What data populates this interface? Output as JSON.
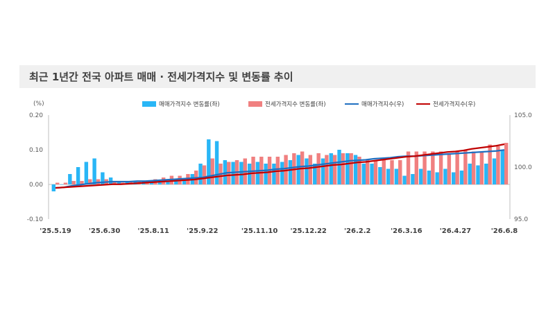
{
  "title": "최근 1년간 전국 아파트 매매 · 전세가격지수 및 변동률 추이",
  "chart_data": {
    "type": "bar",
    "y_unit": "(%)",
    "ylim_left": [
      -0.1,
      0.2
    ],
    "left_ticks": [
      "0.20",
      "0.10",
      "0.00",
      "-0.10"
    ],
    "ylim_right": [
      95.0,
      105.0
    ],
    "right_ticks": [
      "105.0",
      "100.0",
      "95.0"
    ],
    "x_ticks": [
      "'25.5.19",
      "'25.6.30",
      "'25.8.11",
      "'25.9.22",
      "'25.11.10",
      "'25.12.22",
      "'26.2.2",
      "'26.3.16",
      "'26.4.27",
      "'26.6.8"
    ],
    "x_tick_index": [
      0,
      6,
      12,
      18,
      25,
      31,
      37,
      43,
      49,
      55
    ],
    "legend_position": "top",
    "series": [
      {
        "name": "매매가격지수 변동률(좌)",
        "type": "bar",
        "axis": "left",
        "color": "#29b6f6",
        "values": [
          -0.02,
          0.0,
          0.03,
          0.05,
          0.065,
          0.075,
          0.035,
          0.02,
          0.01,
          0.01,
          0.01,
          0.01,
          0.01,
          0.01,
          0.01,
          0.015,
          0.015,
          0.03,
          0.06,
          0.13,
          0.125,
          0.07,
          0.065,
          0.065,
          0.06,
          0.065,
          0.06,
          0.06,
          0.065,
          0.07,
          0.085,
          0.075,
          0.06,
          0.075,
          0.09,
          0.1,
          0.09,
          0.085,
          0.06,
          0.06,
          0.05,
          0.045,
          0.045,
          0.025,
          0.03,
          0.045,
          0.04,
          0.035,
          0.045,
          0.035,
          0.04,
          0.06,
          0.055,
          0.06,
          0.075,
          0.1
        ]
      },
      {
        "name": "전세가격지수 변동률(좌)",
        "type": "bar",
        "axis": "left",
        "color": "#f08080",
        "values": [
          0.005,
          0.005,
          0.01,
          0.01,
          0.015,
          0.015,
          0.015,
          0.01,
          0.005,
          0.01,
          0.01,
          0.01,
          0.015,
          0.02,
          0.025,
          0.025,
          0.03,
          0.04,
          0.055,
          0.075,
          0.06,
          0.065,
          0.07,
          0.075,
          0.08,
          0.08,
          0.08,
          0.08,
          0.085,
          0.09,
          0.095,
          0.085,
          0.09,
          0.085,
          0.085,
          0.09,
          0.09,
          0.08,
          0.07,
          0.07,
          0.07,
          0.07,
          0.07,
          0.095,
          0.095,
          0.095,
          0.095,
          0.095,
          0.09,
          0.095,
          0.1,
          0.095,
          0.095,
          0.115,
          0.11,
          0.12
        ]
      },
      {
        "name": "매매가격지수(우)",
        "type": "line",
        "axis": "right",
        "color": "#1f6fc0",
        "values": [
          98.0,
          98.05,
          98.2,
          98.3,
          98.4,
          98.5,
          98.55,
          98.6,
          98.6,
          98.6,
          98.65,
          98.65,
          98.7,
          98.75,
          98.8,
          98.85,
          98.9,
          98.95,
          99.0,
          99.15,
          99.3,
          99.45,
          99.5,
          99.55,
          99.6,
          99.65,
          99.7,
          99.8,
          99.85,
          99.95,
          100.05,
          100.1,
          100.2,
          100.3,
          100.4,
          100.5,
          100.6,
          100.65,
          100.7,
          100.8,
          100.85,
          100.9,
          101.0,
          101.05,
          101.05,
          101.1,
          101.15,
          101.2,
          101.25,
          101.3,
          101.35,
          101.4,
          101.45,
          101.5,
          101.55,
          101.65
        ]
      },
      {
        "name": "전세가격지수(우)",
        "type": "line",
        "axis": "right",
        "color": "#c00000",
        "values": [
          98.0,
          98.05,
          98.1,
          98.15,
          98.2,
          98.25,
          98.3,
          98.35,
          98.35,
          98.4,
          98.45,
          98.5,
          98.55,
          98.6,
          98.65,
          98.7,
          98.75,
          98.8,
          98.9,
          99.0,
          99.1,
          99.2,
          99.25,
          99.3,
          99.4,
          99.45,
          99.5,
          99.6,
          99.65,
          99.75,
          99.85,
          99.9,
          100.0,
          100.1,
          100.2,
          100.25,
          100.35,
          100.45,
          100.5,
          100.6,
          100.7,
          100.8,
          100.9,
          101.0,
          101.05,
          101.15,
          101.25,
          101.35,
          101.45,
          101.5,
          101.6,
          101.75,
          101.85,
          101.95,
          102.05,
          102.2
        ]
      }
    ]
  }
}
